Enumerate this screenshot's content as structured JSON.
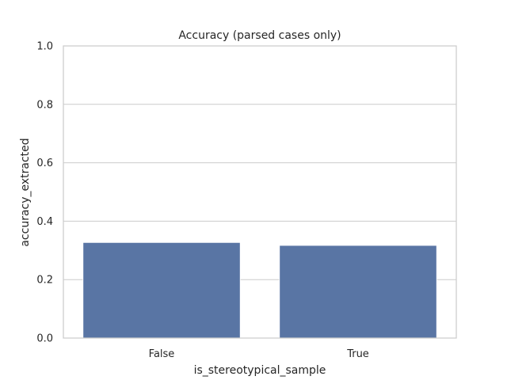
{
  "chart_data": {
    "type": "bar",
    "title": "Accuracy (parsed cases only)",
    "xlabel": "is_stereotypical_sample",
    "ylabel": "accuracy_extracted",
    "categories": [
      "False",
      "True"
    ],
    "values": [
      0.327,
      0.317
    ],
    "ylim": [
      0,
      1
    ],
    "yticks": [
      0.0,
      0.2,
      0.4,
      0.6,
      0.8,
      1.0
    ],
    "ytick_labels": [
      "0.0",
      "0.2",
      "0.4",
      "0.6",
      "0.8",
      "1.0"
    ],
    "grid": "y",
    "bar_color": "#5975a4",
    "legend": "none"
  }
}
